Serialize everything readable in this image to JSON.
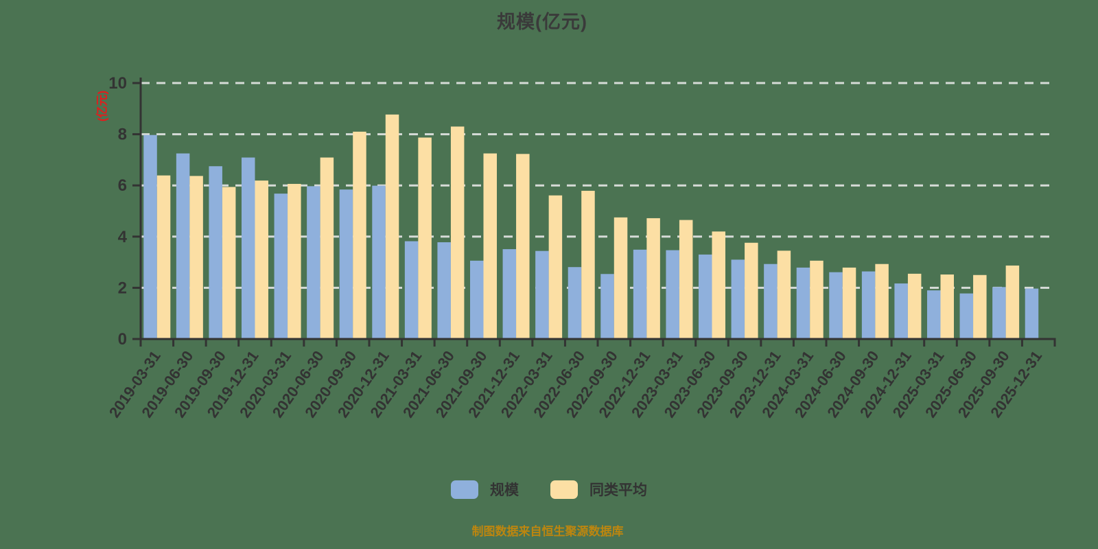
{
  "footer": {
    "source_note": "制图数据来自恒生聚源数据库"
  },
  "chart_data": {
    "type": "bar",
    "title": "规模(亿元)",
    "xlabel": "",
    "ylabel": "(亿元)",
    "ylim": [
      0,
      10
    ],
    "yticks": [
      0,
      2,
      4,
      6,
      8,
      10
    ],
    "grid": "dashed horizontal gridlines on",
    "legend_position": "bottom-center",
    "categories": [
      "2019-03-31",
      "2019-06-30",
      "2019-09-30",
      "2019-12-31",
      "2020-03-31",
      "2020-06-30",
      "2020-09-30",
      "2020-12-31",
      "2021-03-31",
      "2021-06-30",
      "2021-09-30",
      "2021-12-31",
      "2022-03-31",
      "2022-06-30",
      "2022-09-30",
      "2022-12-31",
      "2023-03-31",
      "2023-06-30",
      "2023-09-30",
      "2023-12-31",
      "2024-03-31",
      "2024-06-30",
      "2024-09-30",
      "2024-12-31",
      "2025-03-31",
      "2025-06-30",
      "2025-09-30",
      "2025-12-31"
    ],
    "series": [
      {
        "name": "规模",
        "color": "#8fb0dc",
        "values": [
          7.97,
          7.25,
          6.75,
          7.09,
          5.68,
          5.97,
          5.84,
          5.99,
          3.82,
          3.78,
          3.06,
          3.51,
          3.44,
          2.81,
          2.54,
          3.49,
          3.47,
          3.3,
          3.1,
          2.93,
          2.79,
          2.61,
          2.64,
          2.17,
          1.9,
          1.78,
          2.03,
          1.97
        ]
      },
      {
        "name": "同类平均",
        "color": "#fcdfa4",
        "values": [
          6.39,
          6.37,
          5.94,
          6.19,
          6.06,
          7.09,
          8.1,
          8.77,
          7.87,
          8.3,
          7.25,
          7.23,
          5.61,
          5.79,
          4.75,
          4.72,
          4.65,
          4.2,
          3.76,
          3.45,
          3.06,
          2.79,
          2.93,
          2.55,
          2.52,
          2.5,
          2.87,
          null
        ]
      }
    ],
    "colors": {
      "background": "#4b7352",
      "axis": "#333333",
      "grid": "#e9e9e9",
      "tick_text": "#333333",
      "title_text": "#3a3a3a",
      "ylabel_text": "#e11d1d",
      "source_text": "#bd860f"
    }
  }
}
